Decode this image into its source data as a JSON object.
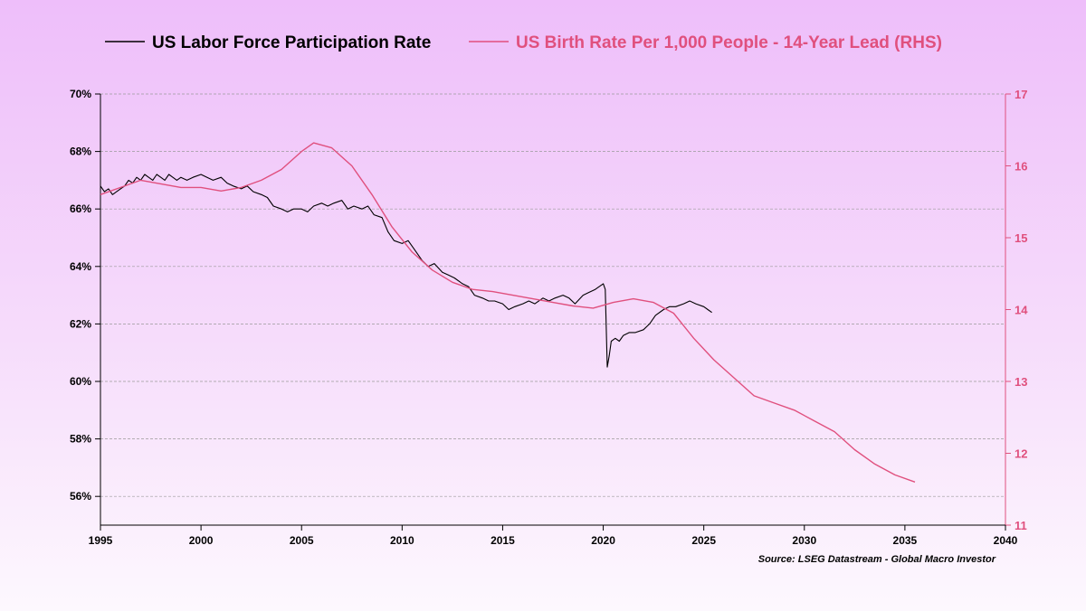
{
  "chart_data": {
    "type": "line",
    "title": "",
    "xlabel": "",
    "ylabel_left": "",
    "ylabel_right": "",
    "xlim": [
      1995,
      2040
    ],
    "ylim_left": [
      55,
      70
    ],
    "ylim_right": [
      11,
      17
    ],
    "x_ticks": [
      1995,
      2000,
      2005,
      2010,
      2015,
      2020,
      2025,
      2030,
      2035,
      2040
    ],
    "x_tick_labels": [
      "1995",
      "2000",
      "2005",
      "2010",
      "2015",
      "2020",
      "2025",
      "2030",
      "2035",
      "2040"
    ],
    "y_left_ticks": [
      56,
      58,
      60,
      62,
      64,
      66,
      68,
      70
    ],
    "y_left_tick_labels": [
      "56%",
      "58%",
      "60%",
      "62%",
      "64%",
      "66%",
      "68%",
      "70%"
    ],
    "y_right_ticks": [
      11,
      12,
      13,
      14,
      15,
      16,
      17
    ],
    "y_right_tick_labels": [
      "11",
      "12",
      "13",
      "14",
      "15",
      "16",
      "17"
    ],
    "grid": "horizontal dashed",
    "legend_position": "top",
    "series": [
      {
        "name": "US Labor Force Participation Rate",
        "axis": "left",
        "color": "#000000",
        "x": [
          1995.0,
          1995.2,
          1995.4,
          1995.6,
          1995.8,
          1996.0,
          1996.2,
          1996.4,
          1996.6,
          1996.8,
          1997.0,
          1997.2,
          1997.4,
          1997.6,
          1997.8,
          1998.0,
          1998.2,
          1998.4,
          1998.6,
          1998.8,
          1999.0,
          1999.3,
          1999.6,
          2000.0,
          2000.3,
          2000.6,
          2001.0,
          2001.3,
          2001.6,
          2002.0,
          2002.3,
          2002.6,
          2003.0,
          2003.3,
          2003.6,
          2004.0,
          2004.3,
          2004.6,
          2005.0,
          2005.3,
          2005.6,
          2006.0,
          2006.3,
          2006.6,
          2007.0,
          2007.3,
          2007.6,
          2008.0,
          2008.3,
          2008.6,
          2009.0,
          2009.3,
          2009.6,
          2010.0,
          2010.3,
          2010.6,
          2011.0,
          2011.3,
          2011.6,
          2012.0,
          2012.3,
          2012.6,
          2013.0,
          2013.3,
          2013.6,
          2014.0,
          2014.3,
          2014.6,
          2015.0,
          2015.3,
          2015.6,
          2016.0,
          2016.3,
          2016.6,
          2017.0,
          2017.3,
          2017.6,
          2018.0,
          2018.3,
          2018.6,
          2019.0,
          2019.3,
          2019.6,
          2020.0,
          2020.1,
          2020.2,
          2020.3,
          2020.4,
          2020.6,
          2020.8,
          2021.0,
          2021.3,
          2021.6,
          2022.0,
          2022.3,
          2022.6,
          2023.0,
          2023.3,
          2023.6,
          2024.0,
          2024.3,
          2024.6,
          2025.0,
          2025.2,
          2025.4
        ],
        "values": [
          66.8,
          66.6,
          66.7,
          66.5,
          66.6,
          66.7,
          66.8,
          67.0,
          66.9,
          67.1,
          67.0,
          67.2,
          67.1,
          67.0,
          67.2,
          67.1,
          67.0,
          67.2,
          67.1,
          67.0,
          67.1,
          67.0,
          67.1,
          67.2,
          67.1,
          67.0,
          67.1,
          66.9,
          66.8,
          66.7,
          66.8,
          66.6,
          66.5,
          66.4,
          66.1,
          66.0,
          65.9,
          66.0,
          66.0,
          65.9,
          66.1,
          66.2,
          66.1,
          66.2,
          66.3,
          66.0,
          66.1,
          66.0,
          66.1,
          65.8,
          65.7,
          65.2,
          64.9,
          64.8,
          64.9,
          64.6,
          64.2,
          64.0,
          64.1,
          63.8,
          63.7,
          63.6,
          63.4,
          63.3,
          63.0,
          62.9,
          62.8,
          62.8,
          62.7,
          62.5,
          62.6,
          62.7,
          62.8,
          62.7,
          62.9,
          62.8,
          62.9,
          63.0,
          62.9,
          62.7,
          63.0,
          63.1,
          63.2,
          63.4,
          63.2,
          60.5,
          60.9,
          61.4,
          61.5,
          61.4,
          61.6,
          61.7,
          61.7,
          61.8,
          62.0,
          62.3,
          62.5,
          62.6,
          62.6,
          62.7,
          62.8,
          62.7,
          62.6,
          62.5,
          62.4
        ]
      },
      {
        "name": "US Birth Rate Per 1,000 People - 14-Year Lead (RHS)",
        "axis": "right",
        "color": "#e0507e",
        "x": [
          1995,
          1996,
          1997,
          1998,
          1999,
          2000,
          2001,
          2002,
          2003,
          2004,
          2005,
          2005.6,
          2006.5,
          2007.5,
          2008.5,
          2009.5,
          2010.5,
          2011.5,
          2012.5,
          2013.5,
          2014.5,
          2015.5,
          2016.5,
          2017.5,
          2018.5,
          2019.5,
          2020.5,
          2021.5,
          2022.5,
          2023.5,
          2024.5,
          2025.5,
          2026.5,
          2027.5,
          2028.5,
          2029.5,
          2030.5,
          2031.5,
          2032.5,
          2033.5,
          2034.5,
          2035.5
        ],
        "values": [
          15.6,
          15.7,
          15.8,
          15.75,
          15.7,
          15.7,
          15.65,
          15.7,
          15.8,
          15.95,
          16.2,
          16.32,
          16.25,
          16.0,
          15.6,
          15.15,
          14.8,
          14.55,
          14.38,
          14.28,
          14.25,
          14.2,
          14.15,
          14.1,
          14.05,
          14.02,
          14.1,
          14.15,
          14.1,
          13.95,
          13.6,
          13.3,
          13.05,
          12.8,
          12.7,
          12.6,
          12.45,
          12.3,
          12.05,
          11.85,
          11.7,
          11.6
        ]
      }
    ]
  },
  "source_text": "Source: LSEG Datastream - Global Macro Investor"
}
